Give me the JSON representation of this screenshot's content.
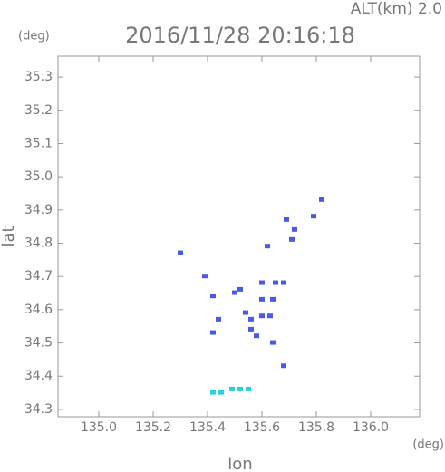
{
  "chart_data": {
    "type": "scatter",
    "title": "2016/11/28 20:16:18",
    "subtitle": "ALT(km) 2.0",
    "x_label": "lon",
    "y_label": "lat",
    "x_unit": "(deg)",
    "y_unit": "(deg)",
    "xlim": [
      134.85,
      136.18
    ],
    "ylim": [
      34.278,
      35.363
    ],
    "xticks": [
      {
        "value": 135,
        "label": "135.0"
      },
      135.2,
      135.4,
      135.6,
      135.8,
      {
        "value": 136,
        "label": "136.0"
      }
    ],
    "yticks": [
      34.3,
      34.4,
      34.5,
      34.6,
      34.7,
      34.8,
      34.9,
      {
        "value": 35,
        "label": "35.0"
      },
      35.1,
      35.2,
      35.3
    ],
    "series": [
      {
        "color": "#4a5ae8",
        "x": [
          135.82,
          135.79,
          135.69,
          135.72,
          135.71,
          135.62,
          135.3,
          135.39,
          135.5,
          135.52,
          135.42,
          135.6,
          135.65,
          135.68,
          135.64,
          135.6,
          135.54,
          135.6,
          135.56,
          135.63,
          135.56,
          135.58,
          135.44,
          135.64,
          135.42,
          135.68
        ],
        "values": [
          34.93,
          34.88,
          34.87,
          34.84,
          34.81,
          34.79,
          34.77,
          34.7,
          34.65,
          34.66,
          34.64,
          34.68,
          34.68,
          34.68,
          34.63,
          34.63,
          34.59,
          34.58,
          34.57,
          34.58,
          34.54,
          34.52,
          34.57,
          34.5,
          34.53,
          34.43
        ]
      },
      {
        "color": "#2ad0e0",
        "x": [
          135.42,
          135.45,
          135.49,
          135.52,
          135.55
        ],
        "values": [
          34.35,
          34.35,
          34.36,
          34.36,
          34.36
        ]
      }
    ]
  }
}
